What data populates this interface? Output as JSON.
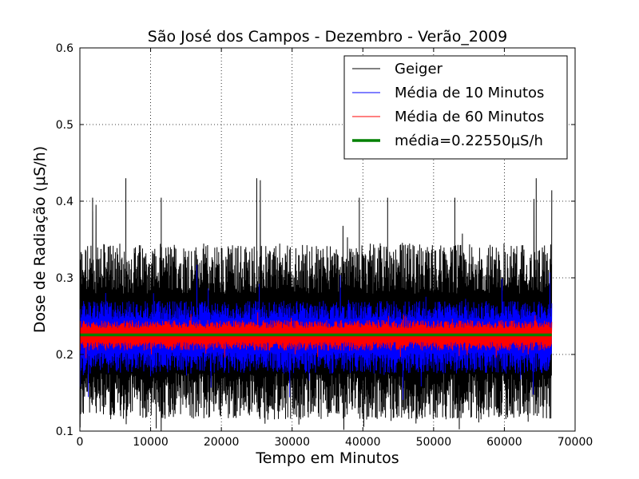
{
  "chart_data": {
    "type": "line",
    "title": "São José dos Campos - Dezembro - Verão_2009",
    "xlabel": "Tempo em Minutos",
    "ylabel": "Dose de Radiação (μS/h)",
    "xlim": [
      0,
      70000
    ],
    "ylim": [
      0.1,
      0.6
    ],
    "x_ticks": [
      0,
      10000,
      20000,
      30000,
      40000,
      50000,
      60000,
      70000
    ],
    "y_ticks": [
      0.1,
      0.2,
      0.3,
      0.4,
      0.5,
      0.6
    ],
    "x_tick_labels": [
      "0",
      "10000",
      "20000",
      "30000",
      "40000",
      "50000",
      "60000",
      "70000"
    ],
    "y_tick_labels": [
      "0.1",
      "0.2",
      "0.3",
      "0.4",
      "0.5",
      "0.6"
    ],
    "grid": true,
    "legend_position": "top-right",
    "x_range_data": [
      0,
      66700
    ],
    "series": [
      {
        "name": "Geiger",
        "color": "#000000",
        "center": 0.2255,
        "band": [
          0.115,
          0.345
        ],
        "spike_max": 0.43,
        "spike_min": 0.1,
        "spike_x": [
          6500,
          25000,
          64500,
          1800,
          11500,
          39500,
          43500,
          53000
        ]
      },
      {
        "name": "Média de 10 Minutos",
        "color": "#0000ff",
        "center": 0.2255,
        "band": [
          0.175,
          0.27
        ],
        "spike_max": 0.32,
        "spike_min": 0.14
      },
      {
        "name": "Média de 60 Minutos",
        "color": "#ff0000",
        "center": 0.2255,
        "band": [
          0.205,
          0.245
        ],
        "spike_max": 0.255,
        "spike_min": 0.195
      },
      {
        "name": "média=0.22550μS/h",
        "color": "#008000",
        "value": 0.2255
      }
    ]
  }
}
